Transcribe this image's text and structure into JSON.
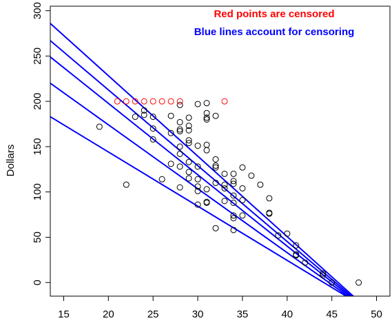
{
  "chart_data": {
    "type": "scatter",
    "ylabel": "Dollars",
    "xlabel": "",
    "xlim": [
      13.5,
      51.5
    ],
    "ylim": [
      -15,
      305
    ],
    "x_ticks": [
      15,
      20,
      25,
      30,
      35,
      40,
      45,
      50
    ],
    "y_ticks": [
      0,
      50,
      100,
      150,
      200,
      250,
      300
    ],
    "annotations": [
      {
        "text": "Red points are censored",
        "color": "#ff0000"
      },
      {
        "text": "Blue lines account for censoring",
        "color": "#0000ff"
      }
    ],
    "colors": {
      "uncensored": "#000000",
      "censored": "#ff0000",
      "lines": "#0000ff"
    },
    "censored_points": [
      {
        "x": 21,
        "y": 200
      },
      {
        "x": 22,
        "y": 200
      },
      {
        "x": 23,
        "y": 200
      },
      {
        "x": 24,
        "y": 200
      },
      {
        "x": 25,
        "y": 200
      },
      {
        "x": 26,
        "y": 200
      },
      {
        "x": 27,
        "y": 200
      },
      {
        "x": 28,
        "y": 200
      },
      {
        "x": 33,
        "y": 200
      }
    ],
    "uncensored_points": [
      {
        "x": 19,
        "y": 172
      },
      {
        "x": 22,
        "y": 108
      },
      {
        "x": 23,
        "y": 183
      },
      {
        "x": 24,
        "y": 190
      },
      {
        "x": 24,
        "y": 185
      },
      {
        "x": 25,
        "y": 183
      },
      {
        "x": 25,
        "y": 170
      },
      {
        "x": 25,
        "y": 158
      },
      {
        "x": 26,
        "y": 114
      },
      {
        "x": 27,
        "y": 184
      },
      {
        "x": 27,
        "y": 165
      },
      {
        "x": 27,
        "y": 131
      },
      {
        "x": 28,
        "y": 196
      },
      {
        "x": 28,
        "y": 177
      },
      {
        "x": 28,
        "y": 169
      },
      {
        "x": 28,
        "y": 167
      },
      {
        "x": 28,
        "y": 150
      },
      {
        "x": 28,
        "y": 142
      },
      {
        "x": 28,
        "y": 128
      },
      {
        "x": 28,
        "y": 105
      },
      {
        "x": 29,
        "y": 182
      },
      {
        "x": 29,
        "y": 173
      },
      {
        "x": 29,
        "y": 168
      },
      {
        "x": 29,
        "y": 157
      },
      {
        "x": 29,
        "y": 154
      },
      {
        "x": 29,
        "y": 133
      },
      {
        "x": 29,
        "y": 122
      },
      {
        "x": 29,
        "y": 115
      },
      {
        "x": 30,
        "y": 197
      },
      {
        "x": 30,
        "y": 151
      },
      {
        "x": 30,
        "y": 128
      },
      {
        "x": 30,
        "y": 114
      },
      {
        "x": 30,
        "y": 106
      },
      {
        "x": 30,
        "y": 101
      },
      {
        "x": 30,
        "y": 86
      },
      {
        "x": 31,
        "y": 198
      },
      {
        "x": 31,
        "y": 187
      },
      {
        "x": 31,
        "y": 182
      },
      {
        "x": 31,
        "y": 180
      },
      {
        "x": 31,
        "y": 152
      },
      {
        "x": 31,
        "y": 146
      },
      {
        "x": 31,
        "y": 103
      },
      {
        "x": 31,
        "y": 89
      },
      {
        "x": 31,
        "y": 88
      },
      {
        "x": 32,
        "y": 184
      },
      {
        "x": 32,
        "y": 136
      },
      {
        "x": 32,
        "y": 129
      },
      {
        "x": 32,
        "y": 127
      },
      {
        "x": 32,
        "y": 110
      },
      {
        "x": 32,
        "y": 60
      },
      {
        "x": 33,
        "y": 120
      },
      {
        "x": 33,
        "y": 108
      },
      {
        "x": 33,
        "y": 104
      },
      {
        "x": 33,
        "y": 90
      },
      {
        "x": 34,
        "y": 120
      },
      {
        "x": 34,
        "y": 112
      },
      {
        "x": 34,
        "y": 109
      },
      {
        "x": 34,
        "y": 96
      },
      {
        "x": 34,
        "y": 88
      },
      {
        "x": 34,
        "y": 74
      },
      {
        "x": 34,
        "y": 71
      },
      {
        "x": 34,
        "y": 58
      },
      {
        "x": 35,
        "y": 127
      },
      {
        "x": 35,
        "y": 104
      },
      {
        "x": 35,
        "y": 91
      },
      {
        "x": 35,
        "y": 74
      },
      {
        "x": 36,
        "y": 118
      },
      {
        "x": 37,
        "y": 108
      },
      {
        "x": 38,
        "y": 93
      },
      {
        "x": 38,
        "y": 77
      },
      {
        "x": 38,
        "y": 76
      },
      {
        "x": 39,
        "y": 52
      },
      {
        "x": 40,
        "y": 54
      },
      {
        "x": 41,
        "y": 41
      },
      {
        "x": 41,
        "y": 31
      },
      {
        "x": 41,
        "y": 30
      },
      {
        "x": 42,
        "y": 22
      },
      {
        "x": 44,
        "y": 10
      },
      {
        "x": 44,
        "y": 8
      },
      {
        "x": 45,
        "y": 0
      },
      {
        "x": 48,
        "y": 0
      }
    ],
    "lines": [
      {
        "x1": 13.5,
        "y1": 286,
        "x2": 47.4,
        "y2": -15
      },
      {
        "x1": 13.5,
        "y1": 267,
        "x2": 47.2,
        "y2": -15
      },
      {
        "x1": 13.5,
        "y1": 249,
        "x2": 47.0,
        "y2": -15
      },
      {
        "x1": 13.5,
        "y1": 220,
        "x2": 46.8,
        "y2": -15
      },
      {
        "x1": 13.5,
        "y1": 183,
        "x2": 46.6,
        "y2": -15
      }
    ]
  }
}
